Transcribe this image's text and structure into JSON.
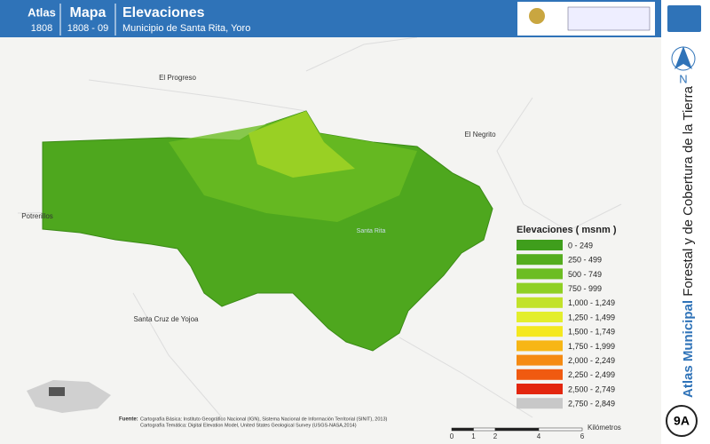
{
  "header": {
    "atlas_label": "Atlas",
    "atlas_number": "1808",
    "mapa_label": "Mapa",
    "mapa_number": "1808 - 09",
    "title": "Elevaciones",
    "subtitle": "Municipio de Santa Rita, Yoro"
  },
  "side": {
    "title_bold": "Atlas Municipal",
    "title_rest": "Forestal y de Cobertura de la Tierra",
    "north": "N",
    "page": "9A"
  },
  "places": [
    {
      "label": "El Progreso"
    },
    {
      "label": "El Negrito"
    },
    {
      "label": "Potrerillos"
    },
    {
      "label": "Santa Cruz de Yojoa"
    },
    {
      "label": "Santa Rita"
    }
  ],
  "legend": {
    "title": "Elevaciones ( msnm )",
    "items": [
      {
        "label": "0 - 249",
        "color": "#3f9e1c"
      },
      {
        "label": "250 - 499",
        "color": "#55ad1f"
      },
      {
        "label": "500 - 749",
        "color": "#6cbd22"
      },
      {
        "label": "750 - 999",
        "color": "#8fd024"
      },
      {
        "label": "1,000 - 1,249",
        "color": "#c2e22a"
      },
      {
        "label": "1,250 - 1,499",
        "color": "#e3ee2c"
      },
      {
        "label": "1,500 - 1,749",
        "color": "#f4e81f"
      },
      {
        "label": "1,750 - 1,999",
        "color": "#f7b615"
      },
      {
        "label": "2,000 - 2,249",
        "color": "#f58a12"
      },
      {
        "label": "2,250 - 2,499",
        "color": "#f05a10"
      },
      {
        "label": "2,500 - 2,749",
        "color": "#e3260e"
      },
      {
        "label": "2,750 - 2,849",
        "color": "#c8c8c8"
      }
    ]
  },
  "scale": {
    "ticks": [
      0,
      1,
      2,
      4,
      6
    ],
    "unit": "Kilómetros"
  },
  "source": {
    "label": "Fuente:",
    "line1": "Cartografía Básica: Instituto Geográfico Nacional (IGN), Sistema Nacional de Información Territorial (SINIT), 2013)",
    "line2": "Cartografía Temática: Digital Elevation Model, United States Geological Survey (USGS-NASA,2014)"
  }
}
